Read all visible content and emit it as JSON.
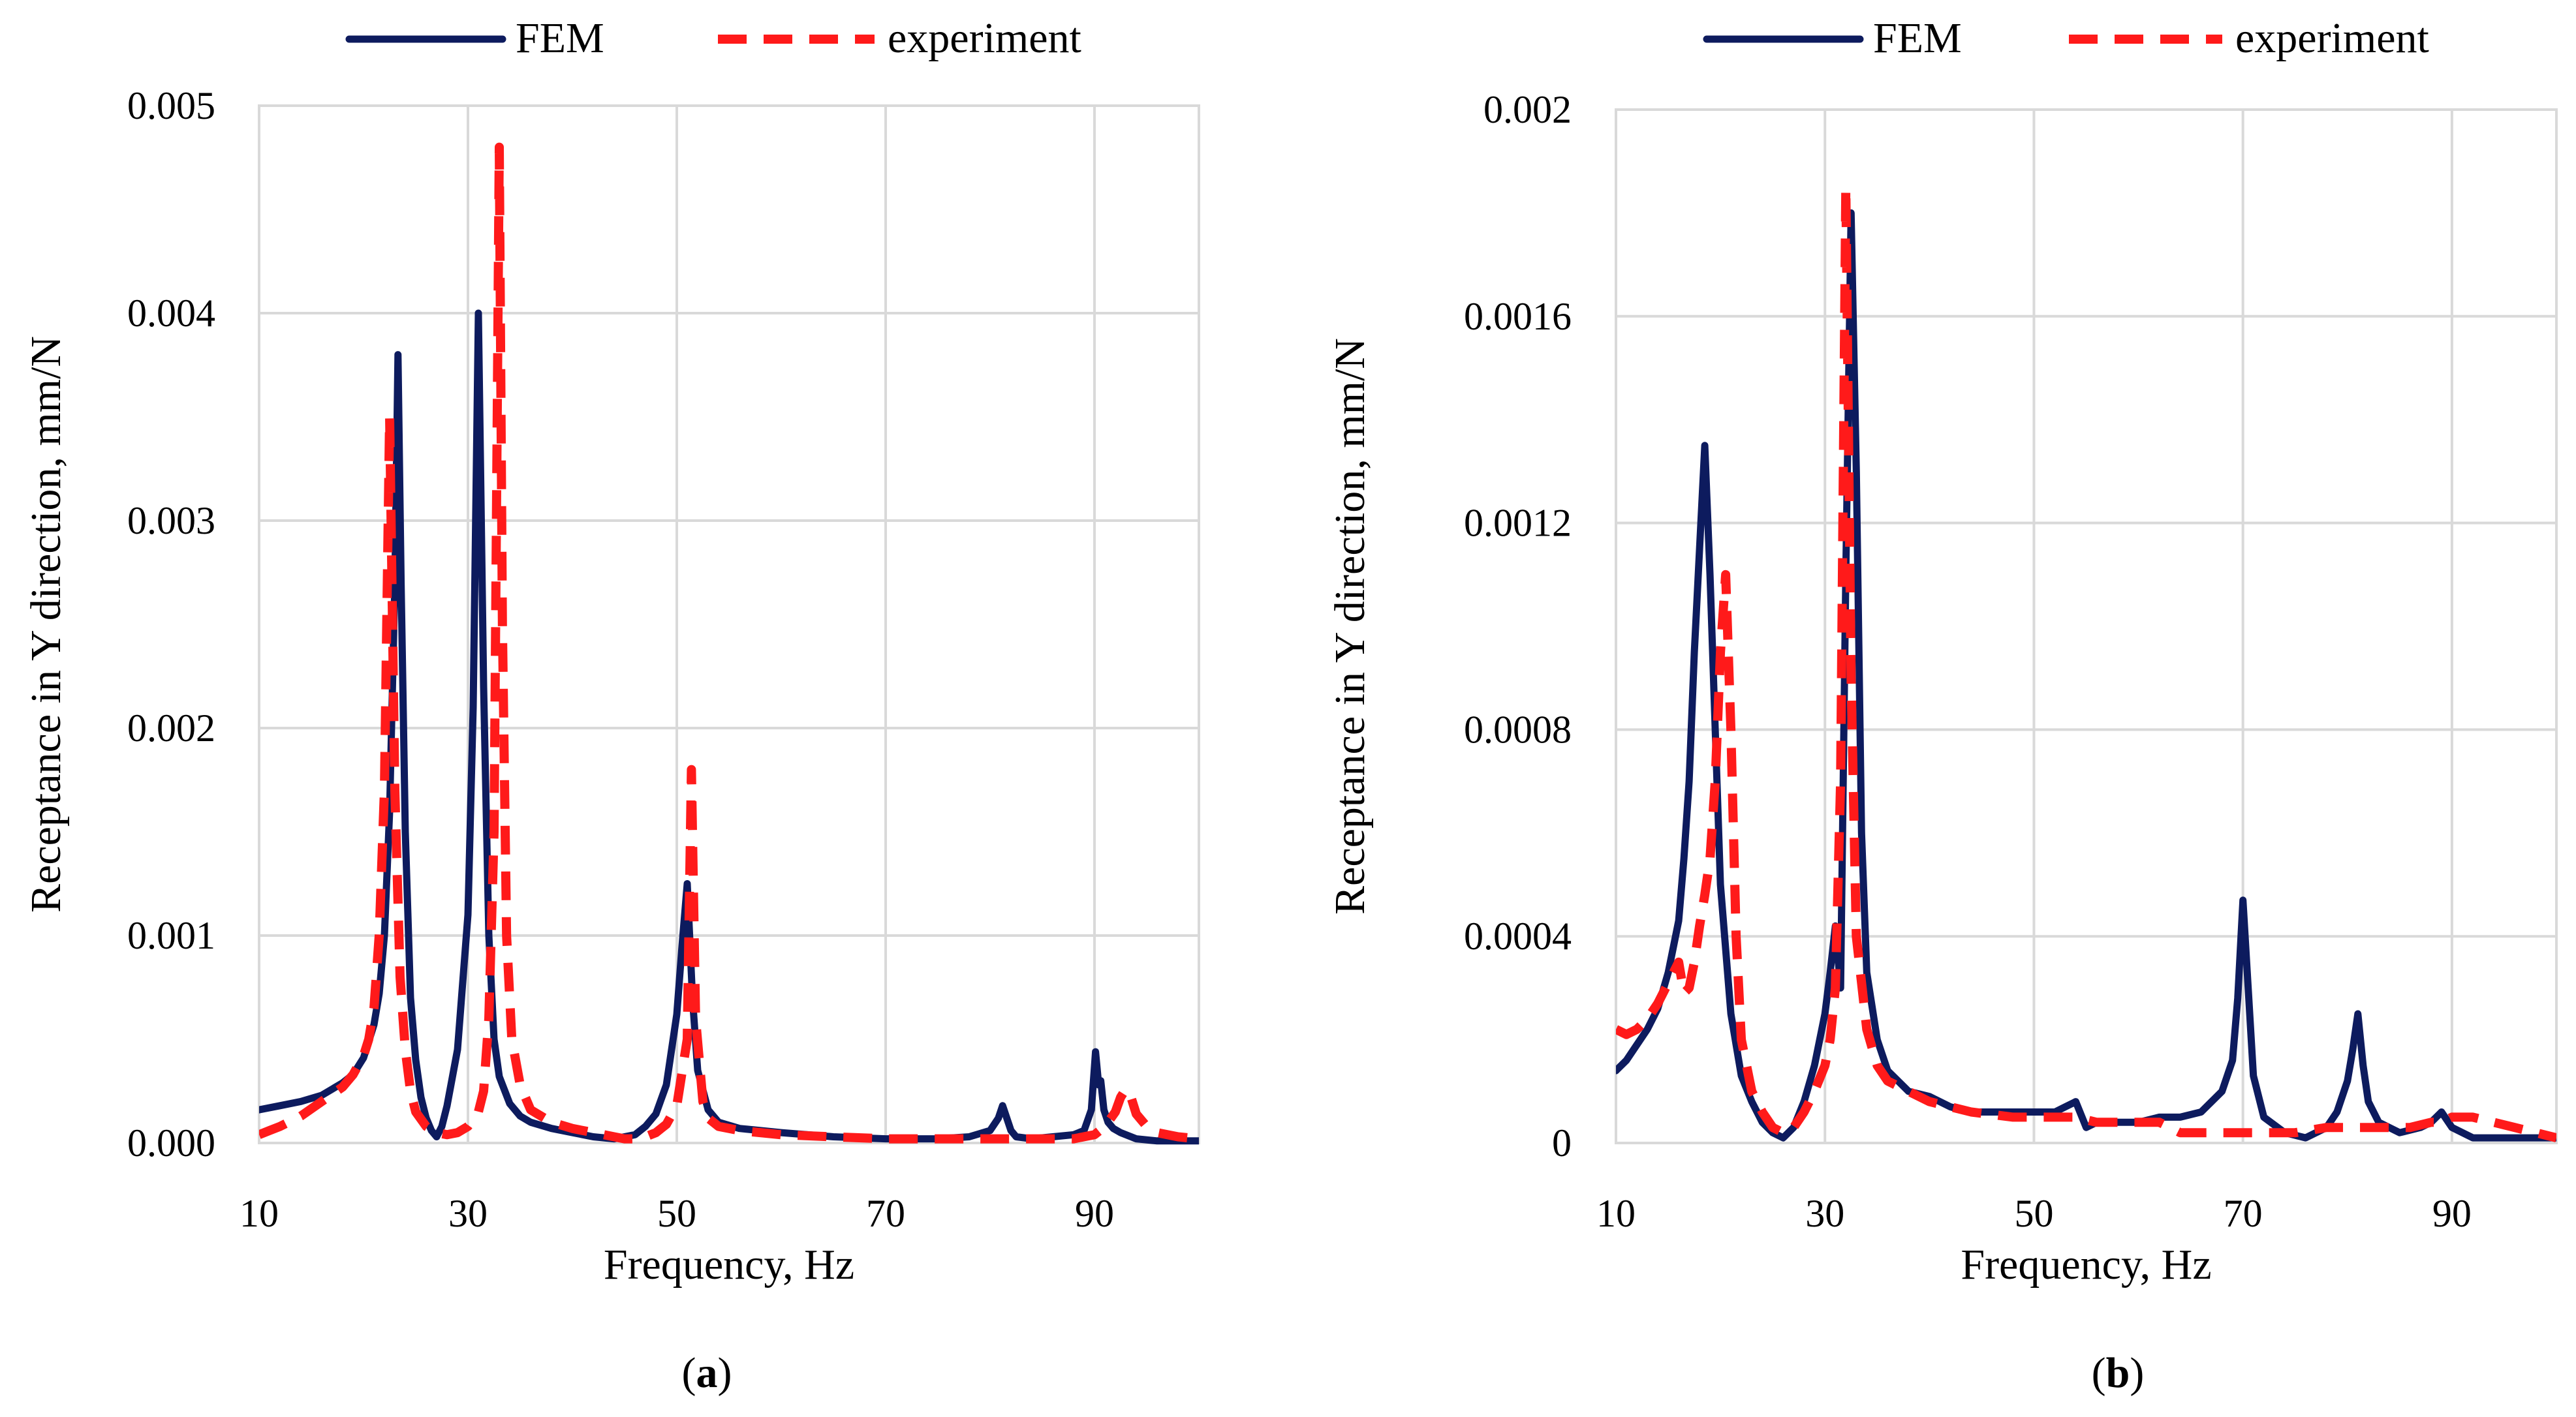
{
  "chart_data": [
    {
      "type": "line",
      "panel_label": "(a)",
      "panel_label_parts": [
        "(",
        "a",
        ")"
      ],
      "xlabel": "Frequency, Hz",
      "ylabel": "Receptance in Y direction, mm/N",
      "xlim": [
        10,
        100
      ],
      "ylim": [
        0,
        0.005
      ],
      "x_ticks": [
        10,
        30,
        50,
        70,
        90
      ],
      "y_ticks": [
        0,
        0.001,
        0.002,
        0.003,
        0.004,
        0.005
      ],
      "y_tick_labels": [
        "0.000",
        "0.001",
        "0.002",
        "0.003",
        "0.004",
        "0.005"
      ],
      "grid": true,
      "legend_position": "top",
      "series": [
        {
          "name": "FEM",
          "color": "#0d1b5e",
          "style": "solid",
          "x": [
            10,
            12,
            14,
            16,
            18,
            19,
            20,
            21,
            21.5,
            22,
            22.5,
            23,
            23.3,
            23.6,
            24,
            24.5,
            25,
            25.5,
            26,
            26.5,
            27,
            27.5,
            28,
            29,
            30,
            30.5,
            31,
            31.5,
            32,
            32.5,
            33,
            34,
            35,
            36,
            38,
            40,
            42,
            44,
            46,
            47,
            48,
            49,
            50,
            50.5,
            51,
            51.5,
            52,
            53,
            54,
            56,
            60,
            65,
            70,
            75,
            78,
            80,
            80.8,
            81.2,
            81.6,
            82,
            82.5,
            84,
            86,
            88,
            89,
            89.7,
            90.1,
            90.4,
            90.6,
            90.9,
            91.3,
            91.8,
            92.5,
            94,
            96,
            98,
            100
          ],
          "y": [
            0.00016,
            0.00018,
            0.0002,
            0.00023,
            0.00029,
            0.00033,
            0.00041,
            0.00057,
            0.00072,
            0.001,
            0.0016,
            0.0027,
            0.0038,
            0.0027,
            0.0015,
            0.0007,
            0.0004,
            0.00022,
            0.00012,
            6e-05,
            3e-05,
            8e-05,
            0.00018,
            0.00045,
            0.0011,
            0.0021,
            0.004,
            0.0022,
            0.001,
            0.0005,
            0.00032,
            0.00019,
            0.00013,
            0.0001,
            7e-05,
            5e-05,
            3e-05,
            2e-05,
            4e-05,
            8e-05,
            0.00014,
            0.00028,
            0.00062,
            0.00095,
            0.00125,
            0.0007,
            0.00035,
            0.00016,
            0.0001,
            7e-05,
            5e-05,
            3e-05,
            2e-05,
            2e-05,
            3e-05,
            6e-05,
            0.00012,
            0.00018,
            0.00012,
            6e-05,
            3e-05,
            2e-05,
            3e-05,
            4e-05,
            6e-05,
            0.00016,
            0.00044,
            0.00028,
            0.0003,
            0.00016,
            0.0001,
            7e-05,
            5e-05,
            2e-05,
            1e-05,
            1e-05,
            1e-05
          ]
        },
        {
          "name": "experiment",
          "color": "#ff1a1a",
          "style": "dashed",
          "x": [
            10,
            11,
            12,
            14,
            16,
            18,
            19,
            20,
            20.5,
            21,
            21.5,
            22,
            22.5,
            23,
            23.5,
            24,
            24.5,
            25,
            26,
            27,
            28,
            29,
            30,
            31,
            31.5,
            32,
            32.5,
            33,
            33.3,
            33.7,
            34.2,
            35,
            36,
            38,
            40,
            42,
            44,
            45,
            46,
            47,
            48,
            49,
            50,
            51,
            51.4,
            51.8,
            52.5,
            53,
            54,
            56,
            60,
            65,
            70,
            75,
            80,
            85,
            88,
            90,
            91,
            92,
            92.5,
            93,
            93.5,
            94,
            95,
            96,
            98,
            100
          ],
          "y": [
            4e-05,
            6e-05,
            8e-05,
            0.00013,
            0.0002,
            0.00027,
            0.00033,
            0.00042,
            0.0005,
            0.00065,
            0.001,
            0.0017,
            0.0035,
            0.0017,
            0.0008,
            0.00045,
            0.00025,
            0.00015,
            8e-05,
            5e-05,
            4e-05,
            5e-05,
            8e-05,
            0.00015,
            0.00025,
            0.0006,
            0.0015,
            0.0048,
            0.0025,
            0.001,
            0.0005,
            0.00028,
            0.00016,
            0.0001,
            7e-05,
            5e-05,
            3e-05,
            2e-05,
            2e-05,
            3e-05,
            5e-05,
            9e-05,
            0.00018,
            0.0005,
            0.0018,
            0.0006,
            0.0002,
            0.00012,
            8e-05,
            6e-05,
            4e-05,
            3e-05,
            2e-05,
            2e-05,
            2e-05,
            2e-05,
            2e-05,
            4e-05,
            8e-05,
            0.00015,
            0.00022,
            0.00026,
            0.00022,
            0.00014,
            8e-05,
            5e-05,
            3e-05,
            2e-05
          ]
        }
      ]
    },
    {
      "type": "line",
      "panel_label": "(b)",
      "panel_label_parts": [
        "(",
        "b",
        ")"
      ],
      "xlabel": "Frequency, Hz",
      "ylabel": "Receptance in Y direction, mm/N",
      "xlim": [
        10,
        100
      ],
      "ylim": [
        0,
        0.002
      ],
      "x_ticks": [
        10,
        30,
        50,
        70,
        90
      ],
      "y_ticks": [
        0,
        0.0004,
        0.0008,
        0.0012,
        0.0016,
        0.002
      ],
      "y_tick_labels": [
        "0",
        "0.0004",
        "0.0008",
        "0.0012",
        "0.0016",
        "0.002"
      ],
      "grid": true,
      "legend_position": "top",
      "series": [
        {
          "name": "FEM",
          "color": "#0d1b5e",
          "style": "solid",
          "x": [
            10,
            11,
            12,
            13,
            14,
            15,
            16,
            16.5,
            17,
            17.5,
            18,
            18.5,
            19,
            19.5,
            20,
            21,
            22,
            23,
            24,
            25,
            26,
            27,
            28,
            29,
            30,
            30.5,
            31,
            31.5,
            32,
            32.5,
            33,
            33.5,
            34,
            35,
            36,
            38,
            40,
            42,
            44,
            46,
            48,
            50,
            52,
            53,
            54,
            55,
            56,
            58,
            60,
            62,
            64,
            66,
            68,
            69,
            69.5,
            70,
            70.5,
            71,
            72,
            74,
            76,
            78,
            79,
            80,
            80.5,
            81,
            81.5,
            82,
            83,
            85,
            87,
            88,
            89,
            90,
            92,
            95,
            98,
            100
          ],
          "y": [
            0.00014,
            0.00016,
            0.00019,
            0.00022,
            0.00026,
            0.00033,
            0.00043,
            0.00055,
            0.0007,
            0.00095,
            0.00115,
            0.00135,
            0.0011,
            0.0008,
            0.0005,
            0.00025,
            0.00013,
            8e-05,
            4e-05,
            2e-05,
            1e-05,
            3e-05,
            8e-05,
            0.00015,
            0.00025,
            0.00033,
            0.00042,
            0.0003,
            0.0011,
            0.0018,
            0.0013,
            0.0006,
            0.00033,
            0.0002,
            0.00014,
            0.0001,
            9e-05,
            7e-05,
            6e-05,
            6e-05,
            6e-05,
            6e-05,
            6e-05,
            7e-05,
            8e-05,
            3e-05,
            4e-05,
            4e-05,
            4e-05,
            5e-05,
            5e-05,
            6e-05,
            0.0001,
            0.00016,
            0.00028,
            0.00047,
            0.0003,
            0.00013,
            5e-05,
            2e-05,
            1e-05,
            3e-05,
            6e-05,
            0.00012,
            0.00018,
            0.00025,
            0.00015,
            8e-05,
            4e-05,
            2e-05,
            3e-05,
            4e-05,
            6e-05,
            3e-05,
            1e-05,
            1e-05,
            1e-05,
            1e-05
          ]
        },
        {
          "name": "experiment",
          "color": "#ff1a1a",
          "style": "dashed",
          "x": [
            10,
            11,
            12,
            13,
            14,
            15,
            16,
            16.5,
            17,
            17.5,
            18,
            18.5,
            19,
            19.5,
            20,
            20.5,
            21,
            21.5,
            22,
            23,
            24,
            25,
            26,
            27,
            28,
            29,
            30,
            30.5,
            31,
            31.5,
            32,
            32.5,
            33,
            34,
            35,
            36,
            38,
            40,
            44,
            48,
            50,
            52,
            54,
            56,
            60,
            62,
            63,
            64,
            65,
            66,
            68,
            70,
            72,
            75,
            78,
            80,
            82,
            84,
            86,
            88,
            89,
            90,
            92,
            94,
            96,
            98,
            100
          ],
          "y": [
            0.00022,
            0.00021,
            0.00022,
            0.00024,
            0.00027,
            0.00031,
            0.00035,
            0.00029,
            0.0003,
            0.00035,
            0.00042,
            0.00048,
            0.00055,
            0.0007,
            0.00095,
            0.0011,
            0.0008,
            0.0004,
            0.0002,
            0.0001,
            6e-05,
            3e-05,
            2e-05,
            3e-05,
            6e-05,
            0.0001,
            0.00015,
            0.0002,
            0.0003,
            0.0007,
            0.00185,
            0.0009,
            0.0004,
            0.00022,
            0.00015,
            0.00012,
            0.0001,
            8e-05,
            6e-05,
            5e-05,
            5e-05,
            5e-05,
            5e-05,
            4e-05,
            4e-05,
            4e-05,
            3e-05,
            2e-05,
            2e-05,
            2e-05,
            2e-05,
            2e-05,
            2e-05,
            2e-05,
            3e-05,
            3e-05,
            3e-05,
            3e-05,
            3e-05,
            4e-05,
            4e-05,
            5e-05,
            5e-05,
            4e-05,
            3e-05,
            2e-05,
            1e-05
          ]
        }
      ]
    }
  ]
}
